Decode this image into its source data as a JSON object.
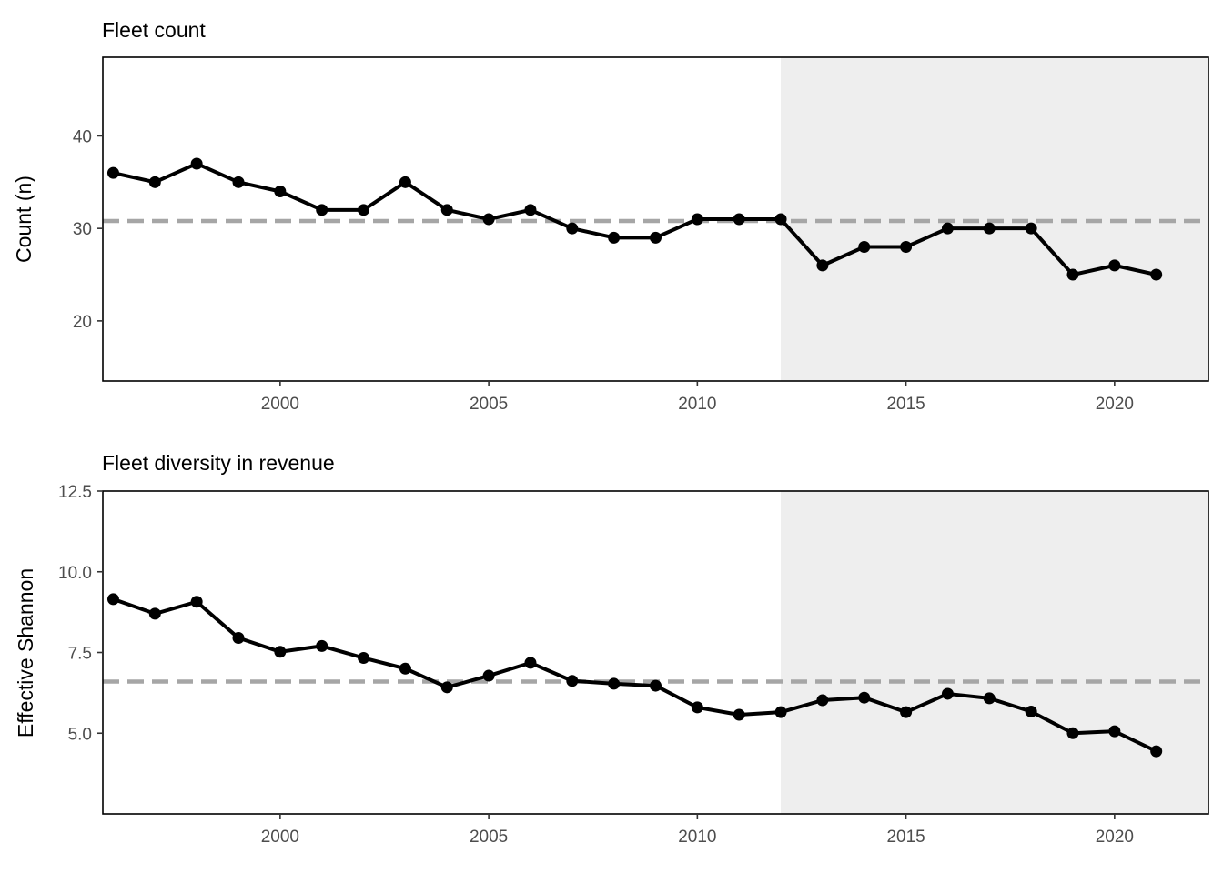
{
  "chart_data": [
    {
      "type": "line",
      "title": "Fleet count",
      "xlabel": "",
      "ylabel": "Count (n)",
      "x": [
        1996,
        1997,
        1998,
        1999,
        2000,
        2001,
        2002,
        2003,
        2004,
        2005,
        2006,
        2007,
        2008,
        2009,
        2010,
        2011,
        2012,
        2013,
        2014,
        2015,
        2016,
        2017,
        2018,
        2019,
        2020,
        2021
      ],
      "series": [
        {
          "values": [
            36,
            35,
            37,
            35,
            34,
            32,
            32,
            35,
            32,
            31,
            32,
            30,
            29,
            29,
            31,
            31,
            31,
            26,
            28,
            28,
            30,
            30,
            30,
            25,
            26,
            25
          ]
        }
      ],
      "mean_line": 30.8,
      "shaded_from": 2012,
      "xlim": [
        1995.75,
        2022.25
      ],
      "ylim": [
        13.5,
        48.5
      ],
      "xticks": [
        "2000",
        "2005",
        "2010",
        "2015",
        "2020"
      ],
      "yticks": [
        "20",
        "30",
        "40"
      ],
      "grid": false,
      "colors": {
        "line": "#000000",
        "mean": "#a6a6a6",
        "shade": "#eeeeee"
      }
    },
    {
      "type": "line",
      "title": "Fleet diversity in revenue",
      "xlabel": "",
      "ylabel": "Effective Shannon",
      "x": [
        1996,
        1997,
        1998,
        1999,
        2000,
        2001,
        2002,
        2003,
        2004,
        2005,
        2006,
        2007,
        2008,
        2009,
        2010,
        2011,
        2012,
        2013,
        2014,
        2015,
        2016,
        2017,
        2018,
        2019,
        2020,
        2021
      ],
      "series": [
        {
          "values": [
            9.15,
            8.7,
            9.07,
            7.95,
            7.52,
            7.7,
            7.33,
            7.0,
            6.42,
            6.78,
            7.18,
            6.62,
            6.53,
            6.47,
            5.8,
            5.57,
            5.65,
            6.02,
            6.1,
            5.65,
            6.22,
            6.08,
            5.67,
            5.0,
            5.06,
            4.44
          ]
        }
      ],
      "mean_line": 6.6,
      "shaded_from": 2012,
      "xlim": [
        1995.75,
        2022.25
      ],
      "ylim": [
        2.5,
        12.5
      ],
      "xticks": [
        "2000",
        "2005",
        "2010",
        "2015",
        "2020"
      ],
      "yticks": [
        "5.0",
        "7.5",
        "10.0",
        "12.5"
      ],
      "grid": false,
      "colors": {
        "line": "#000000",
        "mean": "#a6a6a6",
        "shade": "#eeeeee"
      }
    }
  ]
}
